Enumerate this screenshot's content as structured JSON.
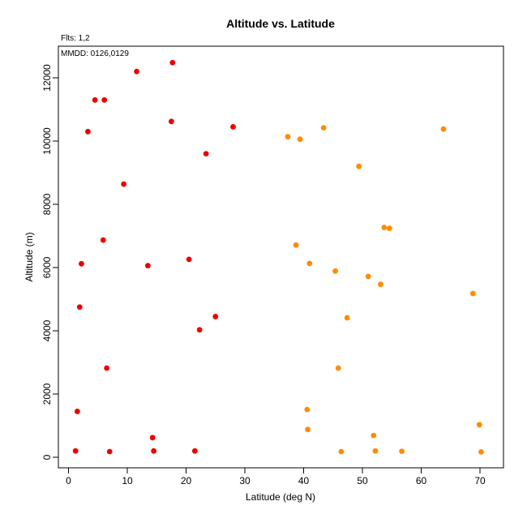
{
  "chart_data": {
    "type": "scatter",
    "title": "Altitude vs. Latitude",
    "xlabel": "Latitude (deg N)",
    "ylabel": "Altitude (m)",
    "xlim": [
      -2,
      74
    ],
    "ylim": [
      -300,
      13000
    ],
    "xticks": [
      "0",
      "10",
      "20",
      "30",
      "40",
      "50",
      "60",
      "70"
    ],
    "yticks": [
      "0",
      "2000",
      "4000",
      "6000",
      "8000",
      "10000",
      "12000"
    ],
    "grid": false,
    "annotations": {
      "flights": "Flts: 1,2",
      "dates": "MMDD: 0126,0129"
    },
    "series": [
      {
        "color": "#ee0000",
        "points": [
          [
            1.2,
            200
          ],
          [
            7.0,
            180
          ],
          [
            14.5,
            200
          ],
          [
            21.5,
            200
          ],
          [
            1.5,
            1450
          ],
          [
            14.3,
            620
          ],
          [
            6.5,
            2820
          ],
          [
            1.9,
            4750
          ],
          [
            22.3,
            4030
          ],
          [
            25.0,
            4450
          ],
          [
            2.2,
            6120
          ],
          [
            5.9,
            6870
          ],
          [
            13.5,
            6060
          ],
          [
            20.5,
            6260
          ],
          [
            9.4,
            8640
          ],
          [
            3.3,
            10300
          ],
          [
            4.5,
            11300
          ],
          [
            6.1,
            11300
          ],
          [
            11.6,
            12200
          ],
          [
            17.7,
            12480
          ],
          [
            17.5,
            10620
          ],
          [
            23.4,
            9600
          ],
          [
            28.0,
            10450
          ]
        ]
      },
      {
        "color": "#ff8c00",
        "points": [
          [
            37.3,
            10140
          ],
          [
            39.4,
            10060
          ],
          [
            43.4,
            10420
          ],
          [
            63.8,
            10380
          ],
          [
            49.4,
            9200
          ],
          [
            53.7,
            7270
          ],
          [
            54.6,
            7240
          ],
          [
            38.7,
            6710
          ],
          [
            41.0,
            6130
          ],
          [
            45.4,
            5890
          ],
          [
            51.0,
            5720
          ],
          [
            53.1,
            5470
          ],
          [
            68.8,
            5180
          ],
          [
            47.4,
            4410
          ],
          [
            45.9,
            2820
          ],
          [
            40.6,
            1510
          ],
          [
            40.7,
            880
          ],
          [
            51.9,
            690
          ],
          [
            69.9,
            1030
          ],
          [
            46.4,
            180
          ],
          [
            52.2,
            200
          ],
          [
            56.7,
            190
          ],
          [
            70.2,
            170
          ]
        ]
      }
    ]
  }
}
